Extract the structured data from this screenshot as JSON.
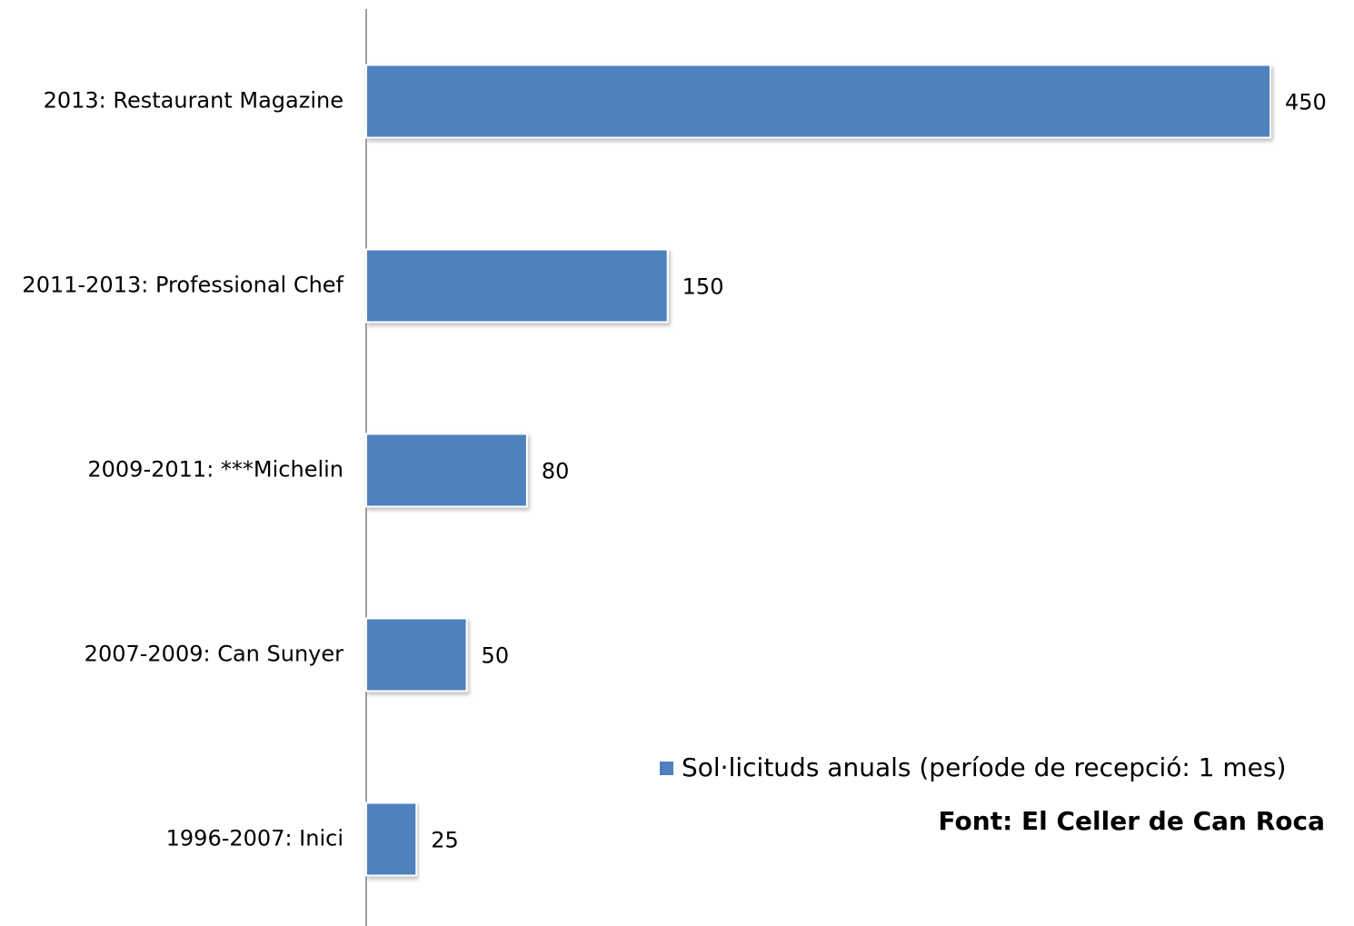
{
  "chart_data": {
    "type": "bar",
    "orientation": "horizontal",
    "categories": [
      "2013: Restaurant Magazine",
      "2011-2013: Professional Chef",
      "2009-2011: ***Michelin",
      "2007-2009: Can Sunyer",
      "1996-2007: Inici"
    ],
    "series": [
      {
        "name": "Sol·licituds anuals (període de recepció: 1 mes)",
        "color": "#4f81bd",
        "values": [
          450,
          150,
          80,
          50,
          25
        ]
      }
    ],
    "legend": "bottom-right",
    "annotation": "Font: El Celler de Can Roca"
  }
}
